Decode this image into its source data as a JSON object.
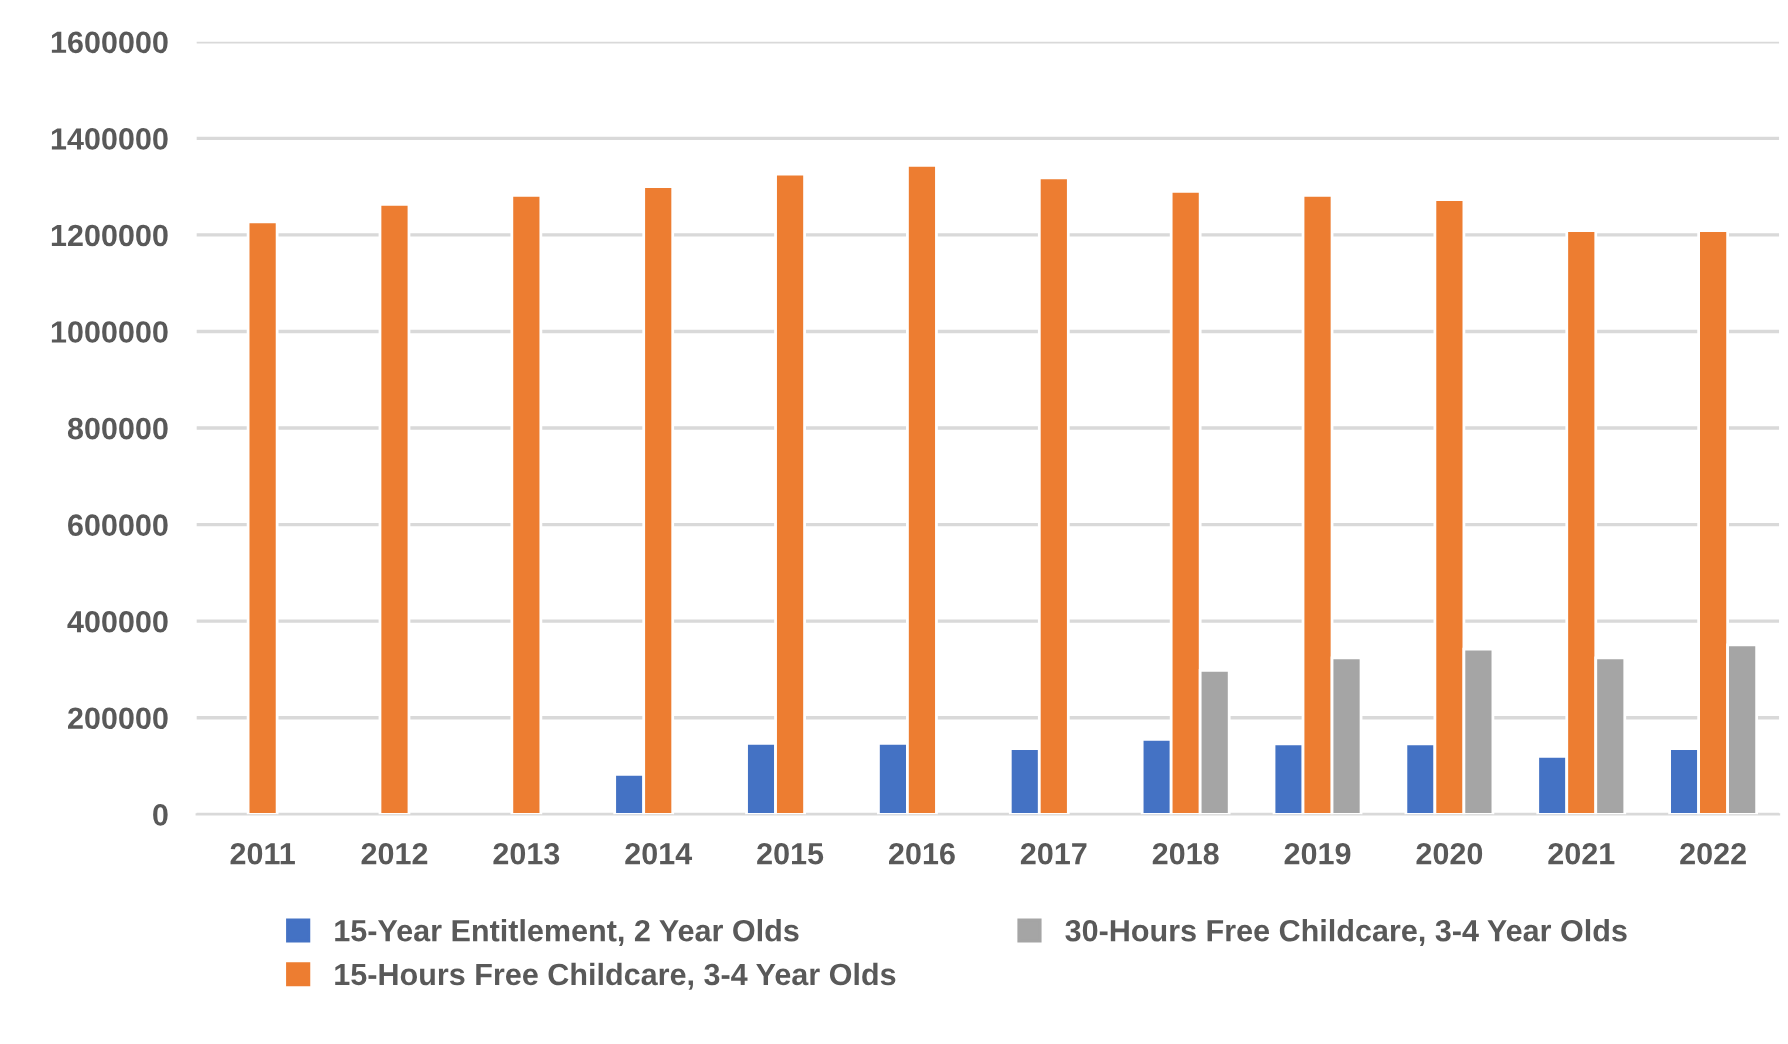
{
  "chart_data": {
    "type": "bar",
    "categories": [
      "2011",
      "2012",
      "2013",
      "2014",
      "2015",
      "2016",
      "2017",
      "2018",
      "2019",
      "2020",
      "2021",
      "2022"
    ],
    "series": [
      {
        "name": "15-Year Entitlement, 2 Year Olds",
        "color": "#4472c4",
        "values": [
          null,
          null,
          null,
          83000,
          147000,
          147000,
          136000,
          155000,
          146000,
          146000,
          120000,
          136000
        ]
      },
      {
        "name": "15-Hours Free Childcare, 3-4 Year Olds",
        "color": "#ed7d31",
        "values": [
          1227000,
          1263000,
          1282000,
          1300000,
          1326000,
          1344000,
          1318000,
          1290000,
          1282000,
          1273000,
          1209000,
          1209000
        ]
      },
      {
        "name": "30-Hours Free Childcare, 3-4 Year Olds",
        "color": "#a5a5a5",
        "values": [
          null,
          null,
          null,
          null,
          null,
          null,
          null,
          298000,
          324000,
          342000,
          324000,
          351000
        ]
      }
    ],
    "ylim": [
      0,
      1600000
    ],
    "yticks": [
      0,
      200000,
      400000,
      600000,
      800000,
      1000000,
      1200000,
      1400000,
      1600000
    ],
    "grid": "y",
    "legend": "bottom"
  }
}
